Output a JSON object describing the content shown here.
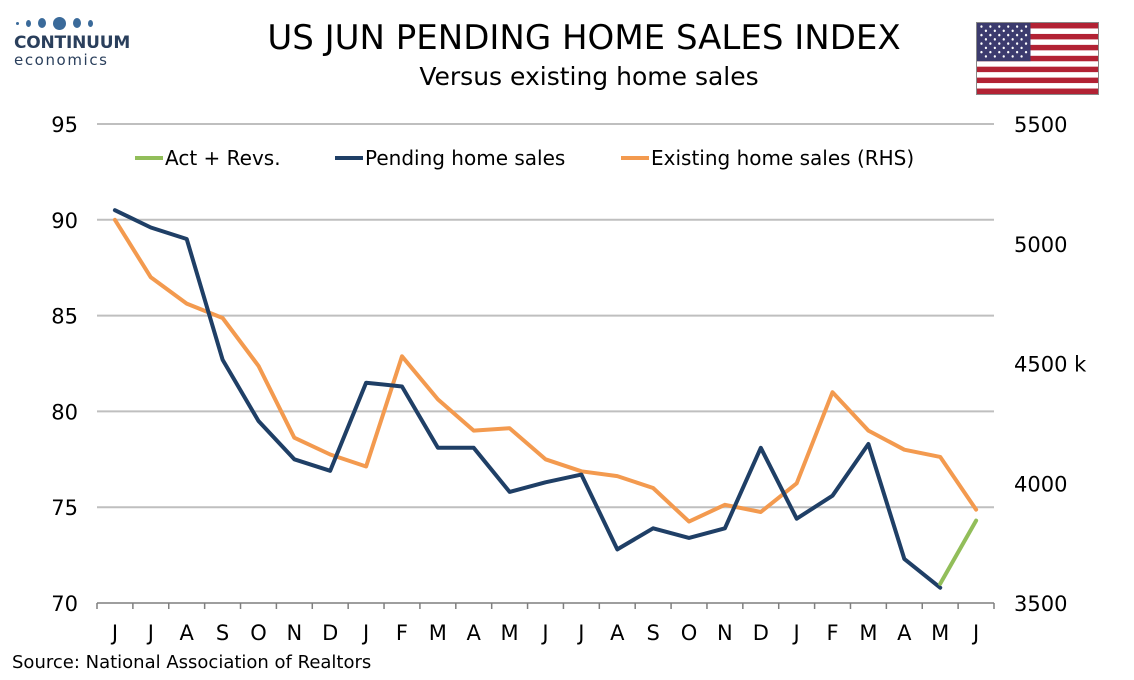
{
  "header": {
    "title": "US JUN PENDING HOME SALES INDEX",
    "subtitle": "Versus existing home sales"
  },
  "logo": {
    "brand": "CONTINUUM",
    "sub": "economics"
  },
  "footer": {
    "source": "Source: National Association of Realtors"
  },
  "flag": {
    "icon": "us-flag-icon"
  },
  "colors": {
    "pending": "#1f3f66",
    "existing": "#f39a4f",
    "act": "#92be5a",
    "grid": "#bfbfbf"
  },
  "chart_data": {
    "type": "line",
    "categories": [
      "J",
      "J",
      "A",
      "S",
      "O",
      "N",
      "D",
      "J",
      "F",
      "M",
      "A",
      "M",
      "J",
      "J",
      "A",
      "S",
      "O",
      "N",
      "D",
      "J",
      "F",
      "M",
      "A",
      "M",
      "J"
    ],
    "left_axis": {
      "ylim": [
        70,
        95
      ],
      "ticks": [
        "70",
        "75",
        "80",
        "85",
        "90",
        "95"
      ]
    },
    "right_axis": {
      "ylim": [
        3500,
        5500
      ],
      "ticks": [
        "3500",
        "4000",
        "4500 k",
        "5000",
        "5500"
      ],
      "tick_values": [
        3500,
        4000,
        4500,
        5000,
        5500
      ]
    },
    "grid": true,
    "legend": "top",
    "series": [
      {
        "name": "Act + Revs.",
        "axis": "left",
        "color": "#92be5a",
        "values": [
          null,
          null,
          null,
          null,
          null,
          null,
          null,
          null,
          null,
          null,
          null,
          null,
          null,
          null,
          null,
          null,
          null,
          null,
          null,
          null,
          null,
          null,
          null,
          71.0,
          74.3
        ]
      },
      {
        "name": "Pending home sales",
        "axis": "left",
        "color": "#1f3f66",
        "values": [
          90.5,
          89.6,
          89.0,
          82.7,
          79.5,
          77.5,
          76.9,
          81.5,
          81.3,
          78.1,
          78.1,
          75.8,
          76.3,
          76.7,
          72.8,
          73.9,
          73.4,
          73.9,
          78.1,
          74.4,
          75.6,
          78.3,
          72.3,
          70.8,
          null
        ]
      },
      {
        "name": "Existing home sales (RHS)",
        "axis": "right",
        "color": "#f39a4f",
        "values": [
          5100,
          4860,
          4750,
          4690,
          4490,
          4190,
          4120,
          4070,
          4530,
          4350,
          4220,
          4230,
          4100,
          4050,
          4030,
          3980,
          3840,
          3910,
          3880,
          4000,
          4380,
          4220,
          4140,
          4110,
          3890
        ]
      }
    ]
  }
}
